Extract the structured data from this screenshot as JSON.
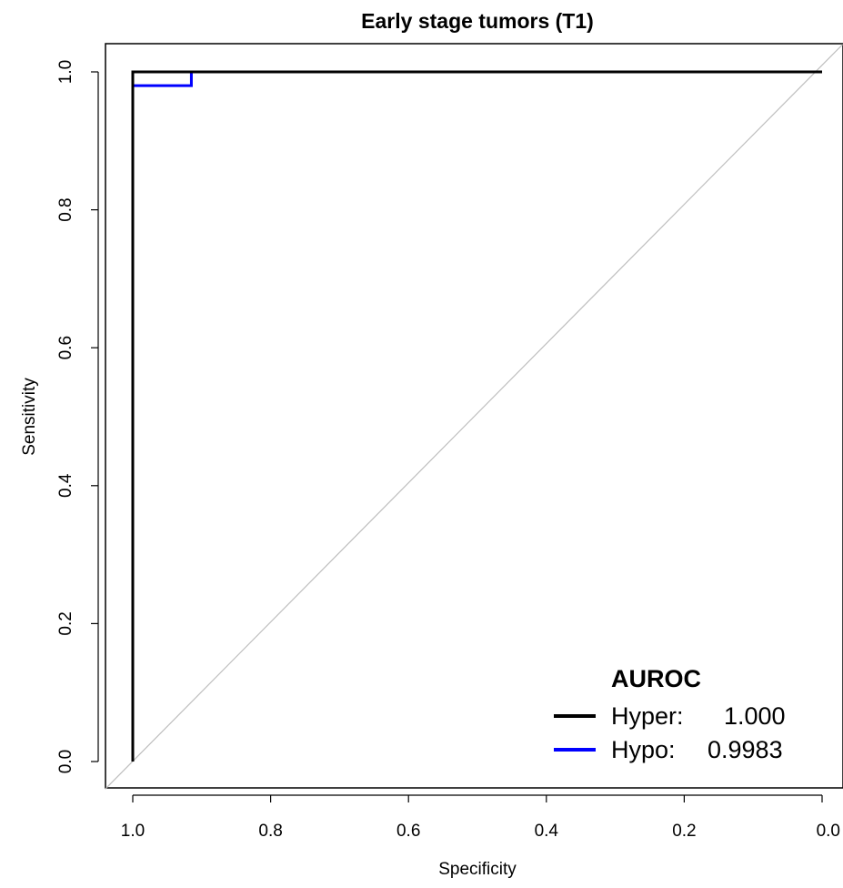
{
  "chart_data": {
    "type": "line",
    "title": "Early stage tumors (T1)",
    "xlabel": "Specificity",
    "ylabel": "Sensitivity",
    "xlim": [
      1.0,
      0.0
    ],
    "ylim": [
      0.0,
      1.0
    ],
    "x_reversed": true,
    "x_ticks": [
      "1.0",
      "0.8",
      "0.6",
      "0.4",
      "0.2",
      "0.0"
    ],
    "y_ticks": [
      "0.0",
      "0.2",
      "0.4",
      "0.6",
      "0.8",
      "1.0"
    ],
    "grid": false,
    "legend": {
      "placement": "bottom-right",
      "title": "AUROC",
      "entries": [
        {
          "label": "Hyper:",
          "value": "1.000"
        },
        {
          "label": "Hypo:",
          "value": "0.9983"
        }
      ]
    },
    "reference_line": {
      "from": [
        1.0,
        0.0
      ],
      "to": [
        0.0,
        1.0
      ],
      "color": "#bebebe"
    },
    "series": [
      {
        "color": "#000000",
        "specificity": [
          1.0,
          1.0,
          0.0
        ],
        "sensitivity": [
          0.0,
          1.0,
          1.0
        ]
      },
      {
        "color": "#0000ff",
        "specificity": [
          1.0,
          1.0,
          0.915,
          0.915
        ],
        "sensitivity": [
          0.98,
          0.98,
          0.98,
          1.0
        ]
      }
    ]
  }
}
